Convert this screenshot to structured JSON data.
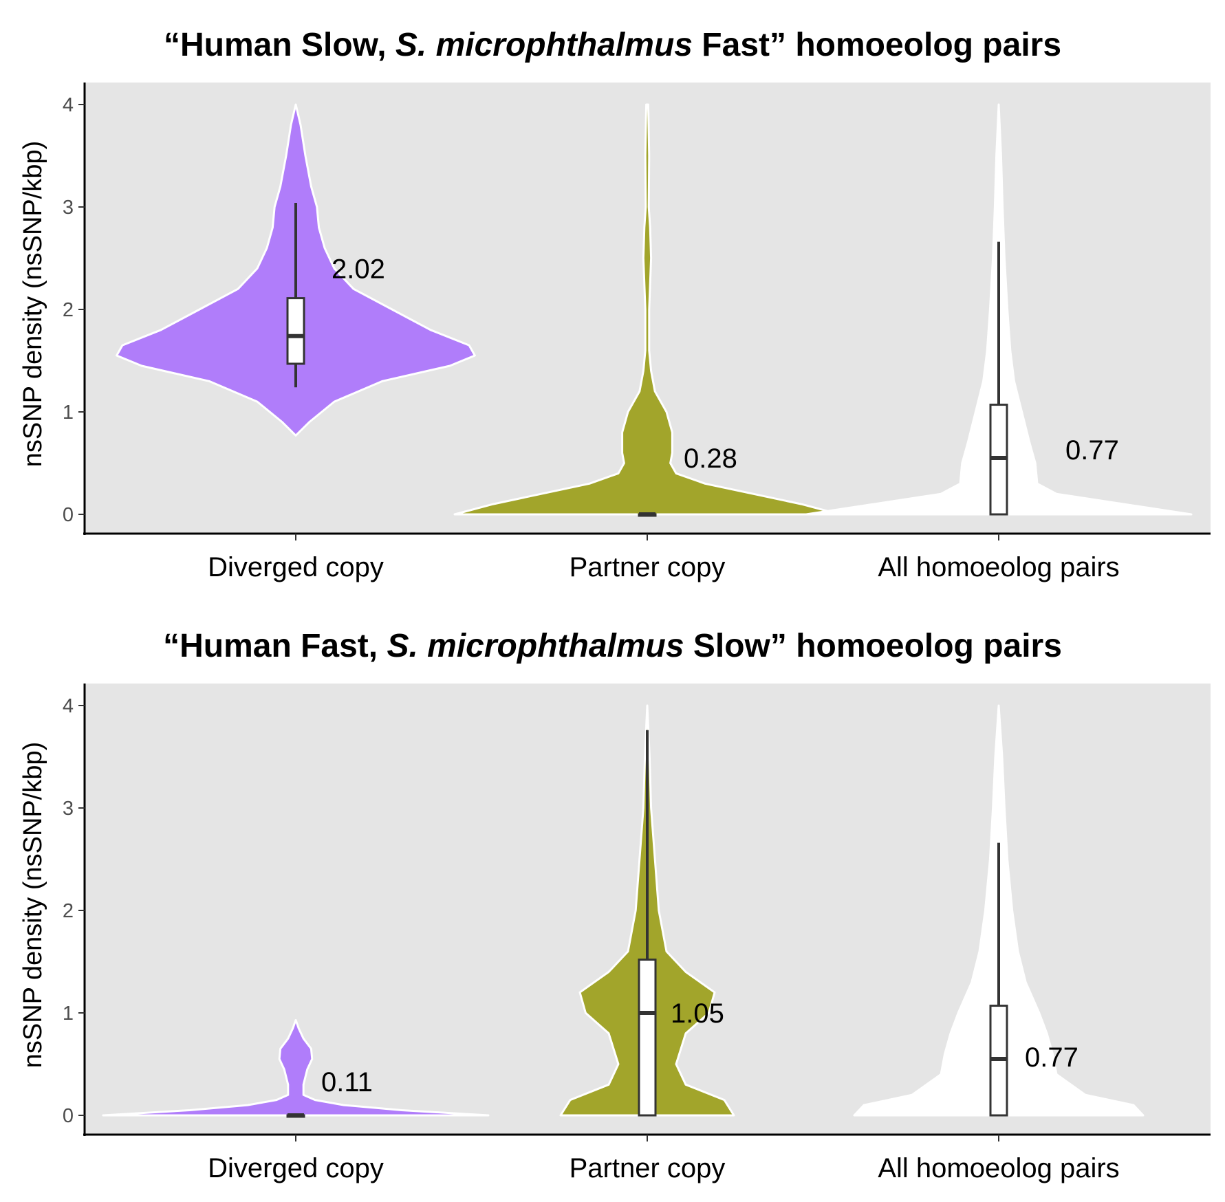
{
  "chart_data": [
    {
      "type": "violin",
      "title": {
        "prefix": "“Human Slow, ",
        "italic": "S. microphthalmus",
        "suffix": " Fast” homoeolog pairs"
      },
      "ylabel": "nsSNP density (nsSNP/kbp)",
      "ylim": [
        0,
        4.2
      ],
      "yticks": [
        "0",
        "1",
        "2",
        "3",
        "4"
      ],
      "grid": false,
      "categories": [
        "Diverged copy",
        "Partner copy",
        "All homoeolog pairs"
      ],
      "series": [
        {
          "category": "Diverged copy",
          "fill": "#b07dfa",
          "label": "2.02",
          "label_y": 2.4,
          "box": {
            "min": 1.24,
            "q1": 1.47,
            "median": 1.74,
            "q3": 2.11,
            "max": 3.04
          },
          "density": [
            [
              0.77,
              0.0
            ],
            [
              0.9,
              0.07
            ],
            [
              1.1,
              0.2
            ],
            [
              1.3,
              0.45
            ],
            [
              1.45,
              0.8
            ],
            [
              1.55,
              0.93
            ],
            [
              1.65,
              0.9
            ],
            [
              1.8,
              0.7
            ],
            [
              2.0,
              0.5
            ],
            [
              2.2,
              0.3
            ],
            [
              2.4,
              0.2
            ],
            [
              2.6,
              0.15
            ],
            [
              2.8,
              0.12
            ],
            [
              3.0,
              0.11
            ],
            [
              3.2,
              0.08
            ],
            [
              3.5,
              0.05
            ],
            [
              3.8,
              0.025
            ],
            [
              4.0,
              0.0
            ]
          ]
        },
        {
          "category": "Partner copy",
          "fill": "#a2a52b",
          "label": "0.28",
          "label_y": 0.55,
          "box": {
            "min": 0,
            "q1": 0,
            "median": 0,
            "q3": 0,
            "max": 0
          },
          "density": [
            [
              0.0,
              1.0
            ],
            [
              0.1,
              0.8
            ],
            [
              0.2,
              0.55
            ],
            [
              0.3,
              0.3
            ],
            [
              0.4,
              0.15
            ],
            [
              0.5,
              0.12
            ],
            [
              0.6,
              0.13
            ],
            [
              0.8,
              0.13
            ],
            [
              1.0,
              0.1
            ],
            [
              1.2,
              0.04
            ],
            [
              1.4,
              0.02
            ],
            [
              1.6,
              0.01
            ],
            [
              2.0,
              0.01
            ],
            [
              2.5,
              0.02
            ],
            [
              2.8,
              0.015
            ],
            [
              3.0,
              0.008
            ],
            [
              3.5,
              0.01
            ],
            [
              4.0,
              0.005
            ]
          ]
        },
        {
          "category": "All homoeolog pairs",
          "fill": "#ffffff",
          "label": "0.77",
          "label_y": 0.63,
          "box": {
            "min": 0,
            "q1": 0,
            "median": 0.55,
            "q3": 1.07,
            "max": 2.66
          },
          "density": [
            [
              0.0,
              1.0
            ],
            [
              0.1,
              0.65
            ],
            [
              0.2,
              0.3
            ],
            [
              0.3,
              0.2
            ],
            [
              0.5,
              0.19
            ],
            [
              0.7,
              0.16
            ],
            [
              1.0,
              0.12
            ],
            [
              1.3,
              0.08
            ],
            [
              1.6,
              0.06
            ],
            [
              2.0,
              0.045
            ],
            [
              2.5,
              0.03
            ],
            [
              3.0,
              0.02
            ],
            [
              3.5,
              0.012
            ],
            [
              4.0,
              0.0
            ]
          ]
        }
      ]
    },
    {
      "type": "violin",
      "title": {
        "prefix": "“Human Fast, ",
        "italic": "S. microphthalmus",
        "suffix": " Slow” homoeolog pairs"
      },
      "ylabel": "nsSNP density (nsSNP/kbp)",
      "ylim": [
        0,
        4.2
      ],
      "yticks": [
        "0",
        "1",
        "2",
        "3",
        "4"
      ],
      "grid": false,
      "categories": [
        "Diverged copy",
        "Partner copy",
        "All homoeolog pairs"
      ],
      "series": [
        {
          "category": "Diverged copy",
          "fill": "#b07dfa",
          "label": "0.11",
          "label_y": 0.33,
          "box": {
            "min": 0,
            "q1": 0,
            "median": 0,
            "q3": 0,
            "max": 0
          },
          "density": [
            [
              0.0,
              1.0
            ],
            [
              0.05,
              0.55
            ],
            [
              0.1,
              0.25
            ],
            [
              0.15,
              0.1
            ],
            [
              0.2,
              0.04
            ],
            [
              0.3,
              0.04
            ],
            [
              0.45,
              0.06
            ],
            [
              0.55,
              0.085
            ],
            [
              0.65,
              0.08
            ],
            [
              0.75,
              0.04
            ],
            [
              0.85,
              0.015
            ],
            [
              0.93,
              0.0
            ]
          ]
        },
        {
          "category": "Partner copy",
          "fill": "#a2a52b",
          "label": "1.05",
          "label_y": 1.0,
          "box": {
            "min": 0,
            "q1": 0,
            "median": 1.0,
            "q3": 1.52,
            "max": 3.76
          },
          "density": [
            [
              0.0,
              0.45
            ],
            [
              0.15,
              0.4
            ],
            [
              0.3,
              0.2
            ],
            [
              0.5,
              0.15
            ],
            [
              0.8,
              0.2
            ],
            [
              1.0,
              0.32
            ],
            [
              1.2,
              0.35
            ],
            [
              1.4,
              0.2
            ],
            [
              1.6,
              0.1
            ],
            [
              2.0,
              0.06
            ],
            [
              2.5,
              0.04
            ],
            [
              3.0,
              0.02
            ],
            [
              3.5,
              0.012
            ],
            [
              4.0,
              0.0
            ]
          ]
        },
        {
          "category": "All homoeolog pairs",
          "fill": "#ffffff",
          "label": "0.77",
          "label_y": 0.57,
          "box": {
            "min": 0,
            "q1": 0,
            "median": 0.55,
            "q3": 1.07,
            "max": 2.66
          },
          "density": [
            [
              0.0,
              0.75
            ],
            [
              0.1,
              0.7
            ],
            [
              0.2,
              0.45
            ],
            [
              0.4,
              0.3
            ],
            [
              0.6,
              0.28
            ],
            [
              0.8,
              0.25
            ],
            [
              1.0,
              0.21
            ],
            [
              1.3,
              0.14
            ],
            [
              1.6,
              0.1
            ],
            [
              2.0,
              0.07
            ],
            [
              2.5,
              0.045
            ],
            [
              3.0,
              0.03
            ],
            [
              3.5,
              0.018
            ],
            [
              4.0,
              0.0
            ]
          ]
        }
      ]
    }
  ]
}
